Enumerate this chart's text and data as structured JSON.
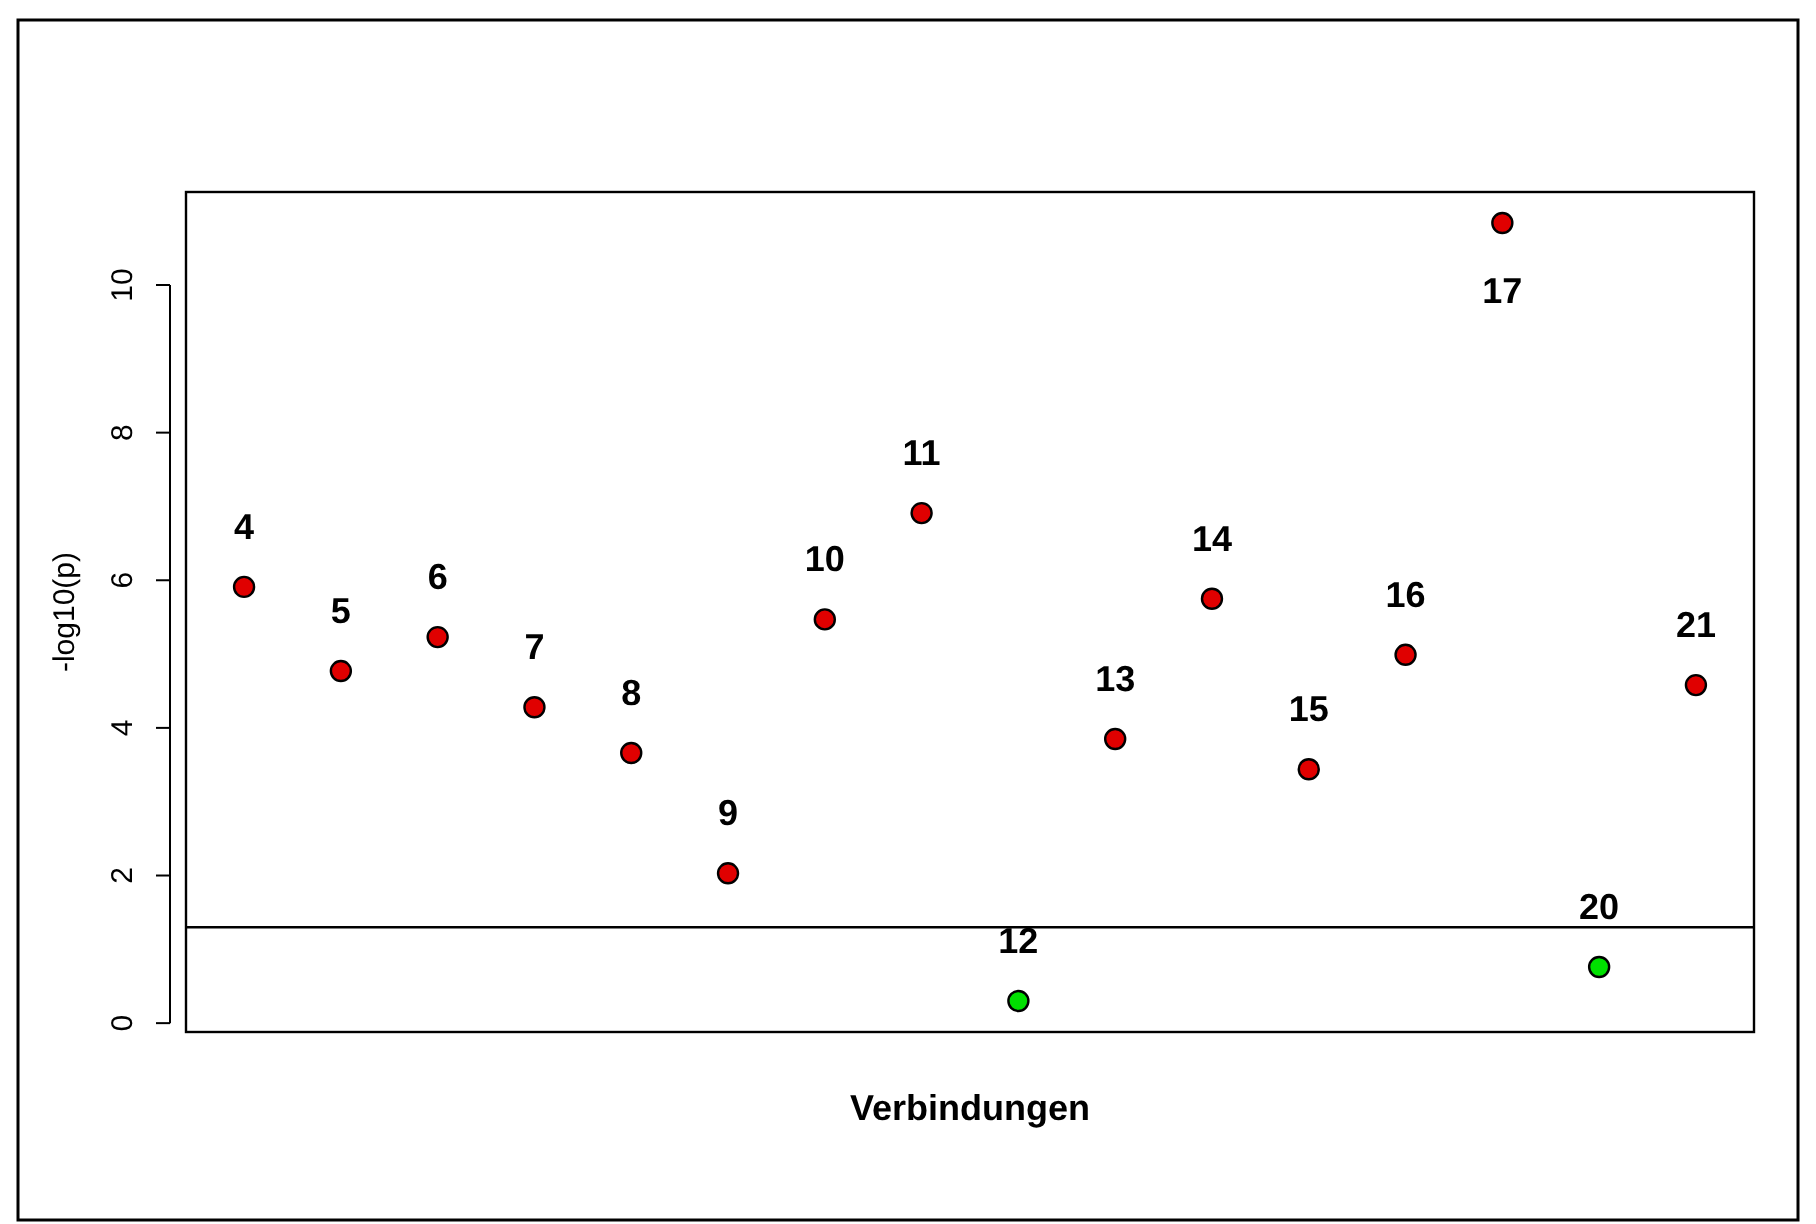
{
  "chart_data": {
    "type": "scatter",
    "xlabel": "Verbindungen",
    "ylabel": "-log10(p)",
    "categories": [
      null,
      null,
      null,
      null,
      null,
      null,
      null,
      null,
      null,
      null,
      null,
      null,
      null,
      null,
      null,
      null
    ],
    "series": [
      {
        "name": "4",
        "color": "#e00000",
        "values": [
          5.91,
          null,
          null,
          null,
          null,
          null,
          null,
          null,
          null,
          null,
          null,
          null,
          null,
          null,
          null,
          null
        ]
      },
      {
        "name": "5",
        "color": "#e00000",
        "values": [
          null,
          4.77,
          null,
          null,
          null,
          null,
          null,
          null,
          null,
          null,
          null,
          null,
          null,
          null,
          null,
          null
        ]
      },
      {
        "name": "6",
        "color": "#e00000",
        "values": [
          null,
          null,
          5.23,
          null,
          null,
          null,
          null,
          null,
          null,
          null,
          null,
          null,
          null,
          null,
          null,
          null
        ]
      },
      {
        "name": "7",
        "color": "#e00000",
        "values": [
          null,
          null,
          null,
          4.28,
          null,
          null,
          null,
          null,
          null,
          null,
          null,
          null,
          null,
          null,
          null,
          null
        ]
      },
      {
        "name": "8",
        "color": "#e00000",
        "values": [
          null,
          null,
          null,
          null,
          3.66,
          null,
          null,
          null,
          null,
          null,
          null,
          null,
          null,
          null,
          null,
          null
        ]
      },
      {
        "name": "9",
        "color": "#e00000",
        "values": [
          null,
          null,
          null,
          null,
          null,
          2.03,
          null,
          null,
          null,
          null,
          null,
          null,
          null,
          null,
          null,
          null
        ]
      },
      {
        "name": "10",
        "color": "#e00000",
        "values": [
          null,
          null,
          null,
          null,
          null,
          null,
          5.47,
          null,
          null,
          null,
          null,
          null,
          null,
          null,
          null,
          null
        ]
      },
      {
        "name": "11",
        "color": "#e00000",
        "values": [
          null,
          null,
          null,
          null,
          null,
          null,
          null,
          6.91,
          null,
          null,
          null,
          null,
          null,
          null,
          null,
          null
        ]
      },
      {
        "name": "12",
        "color": "#00e000",
        "values": [
          null,
          null,
          null,
          null,
          null,
          null,
          null,
          null,
          0.3,
          null,
          null,
          null,
          null,
          null,
          null,
          null
        ]
      },
      {
        "name": "13",
        "color": "#e00000",
        "values": [
          null,
          null,
          null,
          null,
          null,
          null,
          null,
          null,
          null,
          3.85,
          null,
          null,
          null,
          null,
          null,
          null
        ]
      },
      {
        "name": "14",
        "color": "#e00000",
        "values": [
          null,
          null,
          null,
          null,
          null,
          null,
          null,
          null,
          null,
          null,
          5.75,
          null,
          null,
          null,
          null,
          null
        ]
      },
      {
        "name": "15",
        "color": "#e00000",
        "values": [
          null,
          null,
          null,
          null,
          null,
          null,
          null,
          null,
          null,
          null,
          null,
          3.44,
          null,
          null,
          null,
          null
        ]
      },
      {
        "name": "16",
        "color": "#e00000",
        "values": [
          null,
          null,
          null,
          null,
          null,
          null,
          null,
          null,
          null,
          null,
          null,
          null,
          4.99,
          null,
          null,
          null
        ]
      },
      {
        "name": "17",
        "color": "#e00000",
        "values": [
          null,
          null,
          null,
          null,
          null,
          null,
          null,
          null,
          null,
          null,
          null,
          null,
          null,
          10.84,
          null,
          null
        ]
      },
      {
        "name": "20",
        "color": "#00e000",
        "values": [
          null,
          null,
          null,
          null,
          null,
          null,
          null,
          null,
          null,
          null,
          null,
          null,
          null,
          null,
          0.76,
          null
        ]
      },
      {
        "name": "21",
        "color": "#e00000",
        "values": [
          null,
          null,
          null,
          null,
          null,
          null,
          null,
          null,
          null,
          null,
          null,
          null,
          null,
          null,
          null,
          4.58
        ]
      }
    ],
    "ylim": [
      -0.12,
      11.26
    ],
    "yticks": [
      0,
      2,
      4,
      6,
      8,
      10
    ],
    "marker": "circle",
    "ref_lines": [
      {
        "axis": "y",
        "value": 1.3,
        "color": "#000000"
      }
    ]
  }
}
